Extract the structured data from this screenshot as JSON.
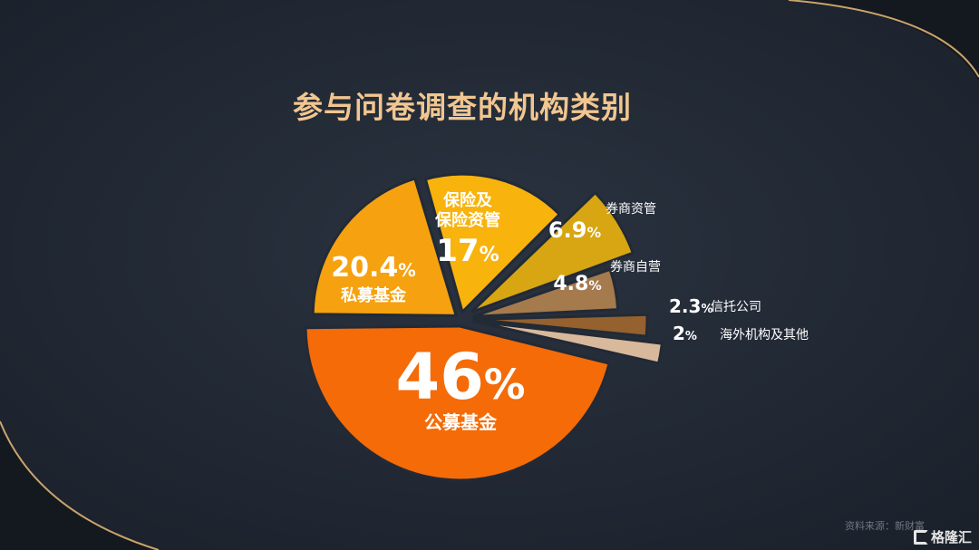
{
  "title": "参与问卷调查的机构类别",
  "source": "资料来源：新财富",
  "logo_text": "格隆汇",
  "colors": {
    "background": "#222a36",
    "title": "#f2c690",
    "border_gold": "#c9a46a"
  },
  "chart_data": {
    "type": "pie",
    "title": "参与问卷调查的机构类别",
    "exploded": true,
    "slices": [
      {
        "label": "私募基金",
        "value": 20.4,
        "value_text": "20.4",
        "color": "#f6a10f"
      },
      {
        "label": "保险及保险资管",
        "value": 17,
        "value_text": "17",
        "color": "#f8b30d"
      },
      {
        "label": "券商资管",
        "value": 6.9,
        "value_text": "6.9",
        "color": "#d7a612"
      },
      {
        "label": "券商自营",
        "value": 4.8,
        "value_text": "4.8",
        "color": "#a57a4d"
      },
      {
        "label": "信托公司",
        "value": 2.3,
        "value_text": "2.3",
        "color": "#94612f"
      },
      {
        "label": "海外机构及其他",
        "value": 2,
        "value_text": "2",
        "color": "#d9b99b"
      },
      {
        "label": "公募基金",
        "value": 46,
        "value_text": "46",
        "color": "#f46b08"
      }
    ]
  }
}
